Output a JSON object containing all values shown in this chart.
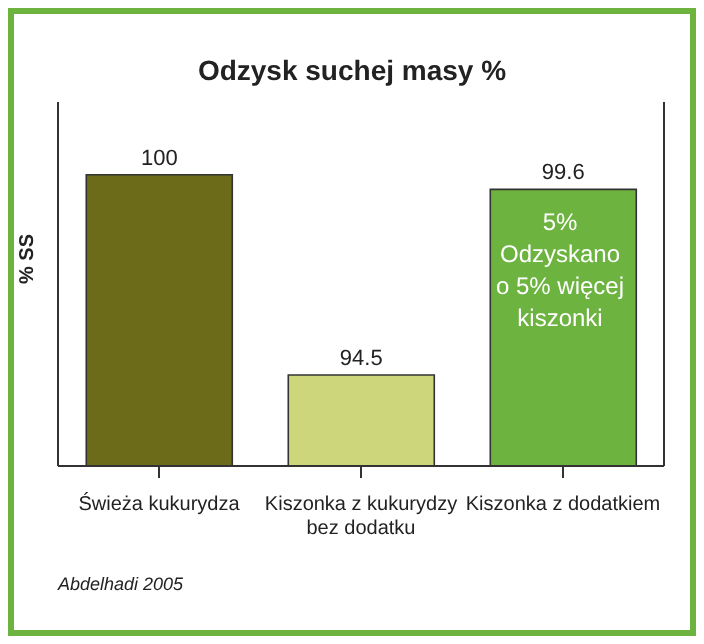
{
  "chart_data": {
    "type": "bar",
    "title": "Odzysk suchej masy %",
    "ylabel": "% SS",
    "categories": [
      "Świeża kukurydza",
      "Kiszonka z kukurydzy bez dodatku",
      "Kiszonka z dodatkiem"
    ],
    "values": [
      100,
      94.5,
      99.6
    ],
    "colors": [
      "#6b6b1a",
      "#cdd67a",
      "#6db33f"
    ],
    "ylim": [
      92,
      102
    ],
    "tick_labels": "x",
    "data_labels": true,
    "grid": false,
    "legend": false,
    "annotations": [
      "5%\nOdzyskano\no 5% więcej\nkiszonki",
      "Abdelhadi 2005"
    ]
  }
}
